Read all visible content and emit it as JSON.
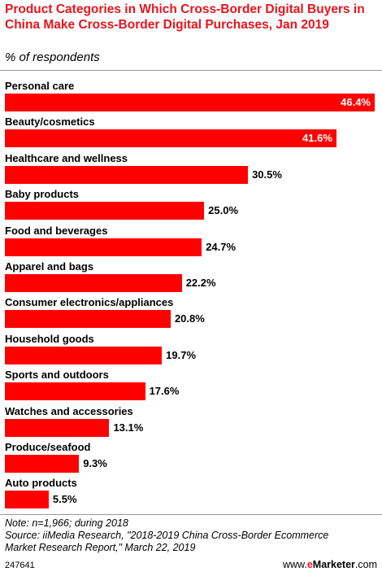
{
  "header": {
    "title": "Product Categories in Which Cross-Border Digital Buyers in China Make Cross-Border Digital Purchases, Jan 2019",
    "subtitle": "% of respondents"
  },
  "chart_data": {
    "type": "bar",
    "orientation": "horizontal",
    "title": "Product Categories in Which Cross-Border Digital Buyers in China Make Cross-Border Digital Purchases, Jan 2019",
    "subtitle": "% of respondents",
    "categories": [
      "Personal care",
      "Beauty/cosmetics",
      "Healthcare and wellness",
      "Baby products",
      "Food and beverages",
      "Apparel and bags",
      "Consumer electronics/appliances",
      "Household goods",
      "Sports and outdoors",
      "Watches and accessories",
      "Produce/seafood",
      "Auto products"
    ],
    "values": [
      46.4,
      41.6,
      30.5,
      25.0,
      24.7,
      22.2,
      20.8,
      19.7,
      17.6,
      13.1,
      9.3,
      5.5
    ],
    "value_labels": [
      "46.4%",
      "41.6%",
      "30.5%",
      "25.0%",
      "24.7%",
      "22.2%",
      "20.8%",
      "19.7%",
      "17.6%",
      "13.1%",
      "9.3%",
      "5.5%"
    ],
    "xlim": [
      0,
      46.4
    ],
    "bar_color": "#ff0000",
    "grid": false,
    "legend": "none"
  },
  "footer": {
    "note": "Note: n=1,966; during 2018",
    "source_line1": "Source: iiMedia Research, \"2018-2019 China Cross-Border Ecommerce",
    "source_line2": "Market Research Report,\" March 22, 2019",
    "chart_id": "247641",
    "brand_prefix": "www.",
    "brand_e": "e",
    "brand_marketer": "Marketer",
    "brand_suffix": ".com"
  }
}
